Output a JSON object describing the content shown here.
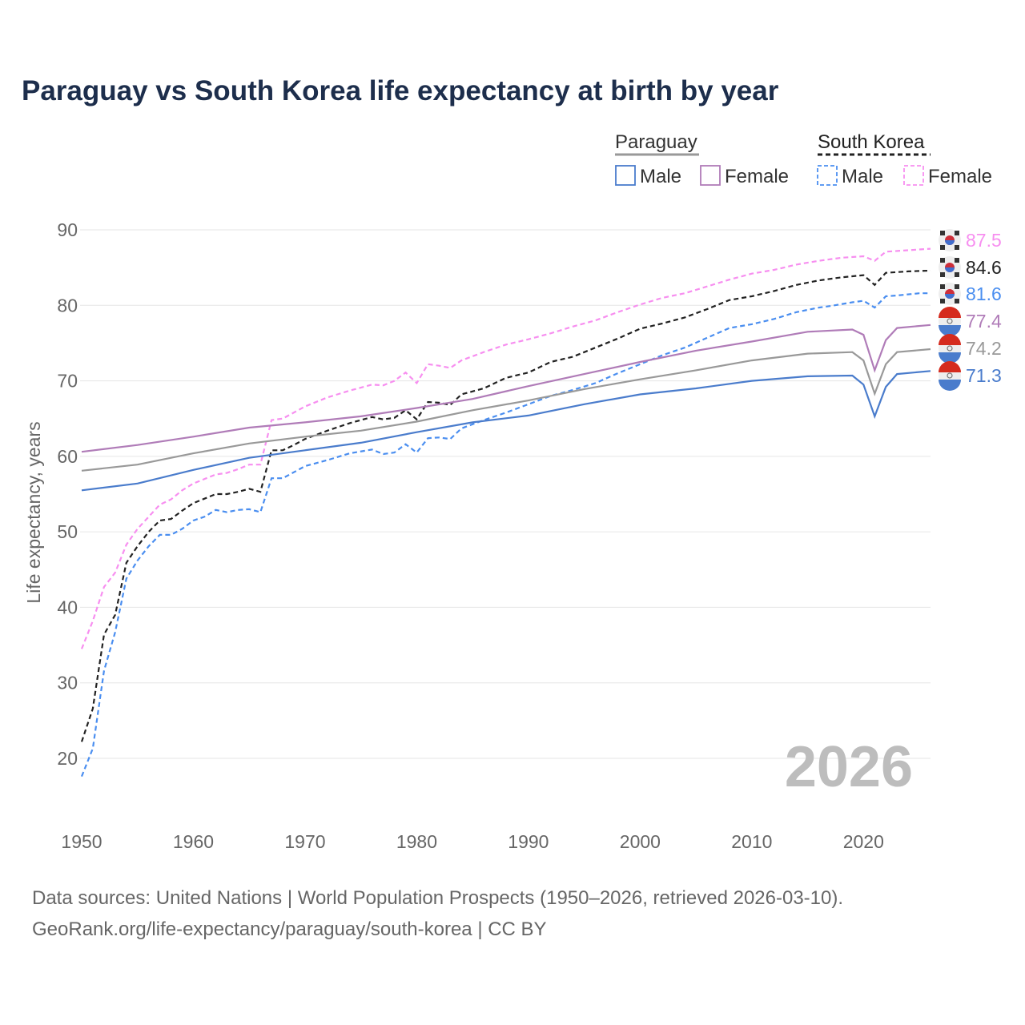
{
  "title": "Paraguay vs South Korea life expectancy at birth by year",
  "source_line1": "Data sources: United Nations | World Population Prospects (1950–2026, retrieved 2026-03-10).",
  "source_line2": "GeoRank.org/life-expectancy/paraguay/south-korea | CC BY",
  "watermark_year": "2026",
  "legend": {
    "group1": "Paraguay",
    "group2": "South Korea",
    "male": "Male",
    "female": "Female"
  },
  "chart_data": {
    "type": "line",
    "title": "Paraguay vs South Korea life expectancy at birth by year",
    "xlabel": "",
    "ylabel": "Life expectancy, years",
    "xlim": [
      1950,
      2026
    ],
    "ylim": [
      20,
      90
    ],
    "xticks": [
      1950,
      1960,
      1970,
      1980,
      1990,
      2000,
      2010,
      2020
    ],
    "yticks": [
      20,
      30,
      40,
      50,
      60,
      70,
      80,
      90
    ],
    "grid": true,
    "legend_position": "top-right",
    "series": [
      {
        "name": "South Korea Female",
        "label": "87.5",
        "color": "#f78ff0",
        "dashed": true,
        "flag": "south-korea",
        "x": [
          1950,
          1951,
          1952,
          1953,
          1954,
          1955,
          1956,
          1957,
          1958,
          1959,
          1960,
          1961,
          1962,
          1963,
          1964,
          1965,
          1966,
          1967,
          1968,
          1969,
          1970,
          1972,
          1974,
          1976,
          1977,
          1978,
          1979,
          1980,
          1981,
          1982,
          1983,
          1984,
          1986,
          1988,
          1990,
          1992,
          1994,
          1996,
          1998,
          2000,
          2002,
          2004,
          2006,
          2008,
          2010,
          2012,
          2014,
          2016,
          2018,
          2020,
          2021,
          2022,
          2024,
          2025,
          2026
        ],
        "y": [
          34.5,
          38.2,
          42.7,
          44.6,
          48.3,
          50.4,
          52.0,
          53.6,
          54.3,
          55.5,
          56.4,
          57.0,
          57.6,
          57.8,
          58.3,
          58.9,
          58.9,
          64.8,
          65.0,
          65.8,
          66.6,
          67.8,
          68.7,
          69.5,
          69.4,
          70.0,
          71.1,
          69.7,
          72.2,
          72.0,
          71.7,
          72.7,
          73.8,
          74.8,
          75.5,
          76.3,
          77.2,
          78.0,
          79.1,
          80.1,
          81.0,
          81.6,
          82.5,
          83.4,
          84.2,
          84.7,
          85.4,
          85.9,
          86.3,
          86.5,
          85.9,
          87.1,
          87.3,
          87.4,
          87.5
        ]
      },
      {
        "name": "South Korea",
        "label": "84.6",
        "color": "#222222",
        "dashed": true,
        "flag": "south-korea",
        "x": [
          1950,
          1951,
          1952,
          1953,
          1954,
          1955,
          1956,
          1957,
          1958,
          1959,
          1960,
          1961,
          1962,
          1963,
          1964,
          1965,
          1966,
          1967,
          1968,
          1969,
          1970,
          1972,
          1974,
          1976,
          1977,
          1978,
          1979,
          1980,
          1981,
          1982,
          1983,
          1984,
          1986,
          1988,
          1990,
          1992,
          1994,
          1996,
          1998,
          2000,
          2002,
          2004,
          2006,
          2008,
          2010,
          2012,
          2014,
          2016,
          2018,
          2020,
          2021,
          2022,
          2024,
          2026
        ],
        "y": [
          22.2,
          26.6,
          36.4,
          39.0,
          45.9,
          48.1,
          50.0,
          51.5,
          51.7,
          52.8,
          53.8,
          54.4,
          55.0,
          55.0,
          55.3,
          55.7,
          55.3,
          60.8,
          60.8,
          61.5,
          62.3,
          63.4,
          64.4,
          65.2,
          64.9,
          65.1,
          66.1,
          64.9,
          67.2,
          67.1,
          66.8,
          68.2,
          69.0,
          70.4,
          71.1,
          72.5,
          73.2,
          74.4,
          75.6,
          76.9,
          77.6,
          78.4,
          79.5,
          80.7,
          81.2,
          81.9,
          82.7,
          83.3,
          83.7,
          84.0,
          82.7,
          84.3,
          84.5,
          84.6
        ]
      },
      {
        "name": "South Korea Male",
        "label": "81.6",
        "color": "#4a8ef0",
        "dashed": true,
        "flag": "south-korea",
        "x": [
          1950,
          1951,
          1952,
          1953,
          1954,
          1955,
          1956,
          1957,
          1958,
          1959,
          1960,
          1961,
          1962,
          1963,
          1964,
          1965,
          1966,
          1967,
          1968,
          1969,
          1970,
          1972,
          1974,
          1976,
          1977,
          1978,
          1979,
          1980,
          1981,
          1982,
          1983,
          1984,
          1986,
          1988,
          1990,
          1992,
          1994,
          1996,
          1998,
          2000,
          2002,
          2004,
          2006,
          2008,
          2010,
          2012,
          2014,
          2016,
          2017,
          2019,
          2020,
          2021,
          2022,
          2023,
          2025,
          2026
        ],
        "y": [
          17.6,
          21.3,
          31.6,
          36.7,
          43.8,
          46.2,
          48.1,
          49.6,
          49.6,
          50.4,
          51.5,
          52.0,
          52.9,
          52.6,
          52.9,
          53.0,
          52.6,
          57.1,
          57.1,
          57.9,
          58.7,
          59.5,
          60.4,
          60.9,
          60.3,
          60.5,
          61.6,
          60.5,
          62.4,
          62.5,
          62.3,
          63.7,
          64.8,
          65.8,
          66.9,
          68.0,
          68.8,
          69.7,
          71.0,
          72.2,
          73.4,
          74.4,
          75.7,
          77.0,
          77.5,
          78.2,
          79.1,
          79.7,
          79.9,
          80.4,
          80.6,
          79.7,
          81.2,
          81.3,
          81.6,
          81.6
        ]
      },
      {
        "name": "Paraguay Female",
        "label": "77.4",
        "color": "#b07cb8",
        "dashed": false,
        "flag": "paraguay",
        "x": [
          1950,
          1955,
          1960,
          1965,
          1970,
          1975,
          1980,
          1985,
          1990,
          1995,
          2000,
          2005,
          2010,
          2015,
          2019,
          2020,
          2021,
          2022,
          2023,
          2026
        ],
        "y": [
          60.6,
          61.5,
          62.6,
          63.8,
          64.5,
          65.3,
          66.4,
          67.6,
          69.3,
          70.9,
          72.5,
          74.0,
          75.2,
          76.5,
          76.8,
          76.1,
          71.4,
          75.4,
          77.0,
          77.4
        ]
      },
      {
        "name": "Paraguay",
        "label": "74.2",
        "color": "#999999",
        "dashed": false,
        "flag": "paraguay",
        "x": [
          1950,
          1955,
          1960,
          1965,
          1970,
          1975,
          1980,
          1985,
          1990,
          1995,
          2000,
          2005,
          2010,
          2015,
          2019,
          2020,
          2021,
          2022,
          2023,
          2026
        ],
        "y": [
          58.1,
          58.9,
          60.4,
          61.7,
          62.6,
          63.4,
          64.6,
          66.1,
          67.4,
          68.9,
          70.2,
          71.4,
          72.7,
          73.6,
          73.8,
          72.7,
          68.3,
          72.2,
          73.8,
          74.2
        ]
      },
      {
        "name": "Paraguay Male",
        "label": "71.3",
        "color": "#4a7ccc",
        "dashed": false,
        "flag": "paraguay",
        "x": [
          1950,
          1955,
          1960,
          1965,
          1970,
          1975,
          1980,
          1985,
          1990,
          1995,
          2000,
          2005,
          2010,
          2015,
          2019,
          2020,
          2021,
          2022,
          2023,
          2026
        ],
        "y": [
          55.5,
          56.4,
          58.2,
          59.8,
          60.8,
          61.8,
          63.2,
          64.5,
          65.4,
          66.9,
          68.2,
          69.0,
          70.0,
          70.6,
          70.7,
          69.5,
          65.3,
          69.2,
          70.9,
          71.3
        ]
      }
    ]
  }
}
